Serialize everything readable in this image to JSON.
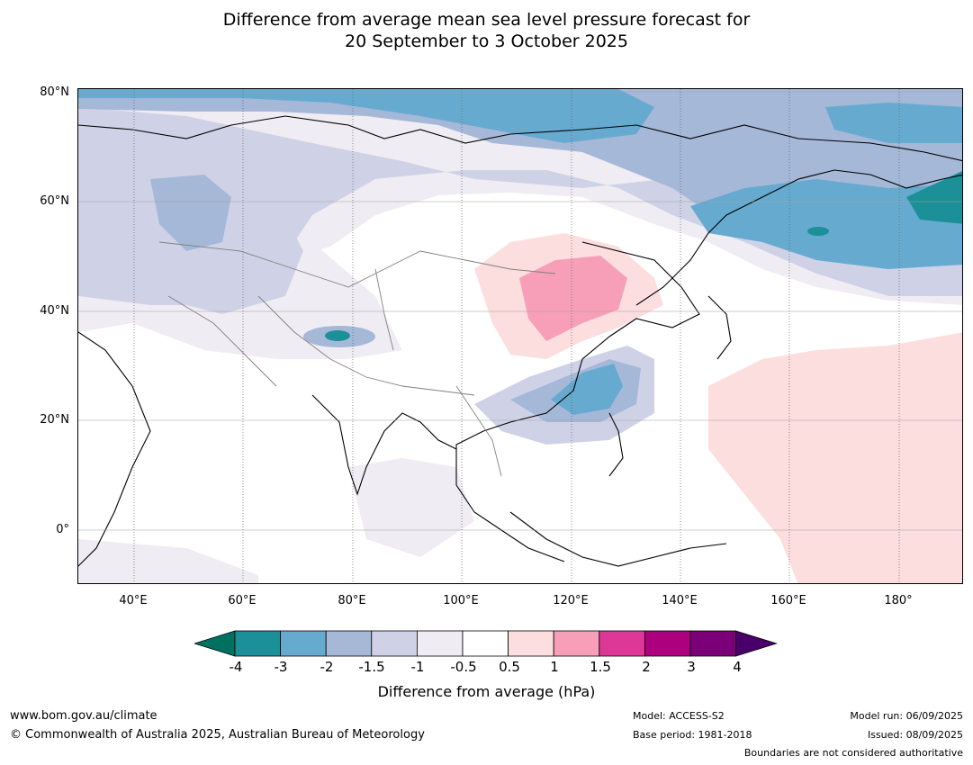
{
  "header": {
    "title_line1": "Difference from average mean sea level pressure forecast for",
    "title_line2": "20 September to 3 October 2025"
  },
  "map": {
    "lat_labels": [
      "80°N",
      "60°N",
      "40°N",
      "20°N",
      "0°"
    ],
    "lon_labels": [
      "40°E",
      "60°E",
      "80°E",
      "100°E",
      "120°E",
      "140°E",
      "160°E",
      "180°"
    ],
    "anomaly_features": [
      {
        "region": "north-west Pacific / Sea of Okhotsk",
        "value": "-3 to -4 hPa"
      },
      {
        "region": "Arctic coast Siberia",
        "value": "-2 to -3 hPa"
      },
      {
        "region": "northern China / Mongolia",
        "value": "+1 to +1.5 hPa"
      },
      {
        "region": "East China Sea / Taiwan",
        "value": "-2 to -3 hPa"
      },
      {
        "region": "western Pacific",
        "value": "+0.5 to +1 hPa"
      }
    ]
  },
  "colorbar": {
    "levels": [
      "-4",
      "-3",
      "-2",
      "-1.5",
      "-1",
      "-0.5",
      "0.5",
      "1",
      "1.5",
      "2",
      "3",
      "4"
    ],
    "colors": [
      "#007060",
      "#1b9098",
      "#66aad0",
      "#a5b8d8",
      "#cfd2e6",
      "#f0ecf3",
      "#ffffff",
      "#fcdede",
      "#f79fb8",
      "#dd3798",
      "#ad007e",
      "#7b0077",
      "#4a006a"
    ],
    "title": "Difference from average (hPa)"
  },
  "footer": {
    "website": "www.bom.gov.au/climate",
    "copyright": "© Commonwealth of Australia 2025, Australian Bureau of Meteorology",
    "model": "Model: ACCESS-S2",
    "base_period": "Base period: 1981-2018",
    "model_run": "Model run: 06/09/2025",
    "issued": "Issued: 08/09/2025",
    "disclaimer": "Boundaries are not considered authoritative"
  }
}
